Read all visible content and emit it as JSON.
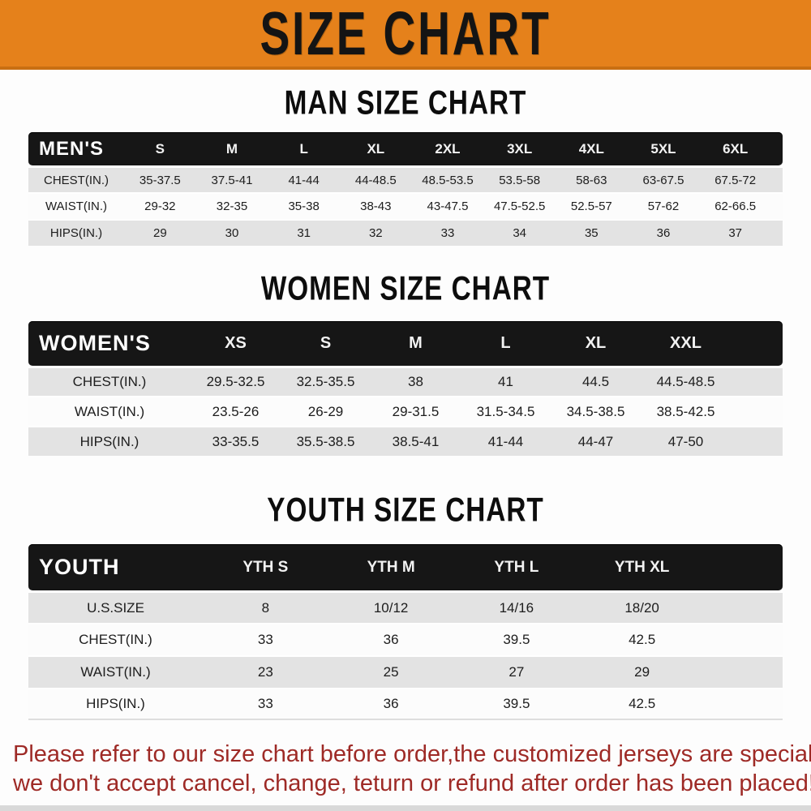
{
  "banner": {
    "title": "SIZE CHART",
    "bg_color": "#e5811b",
    "text_color": "#141414"
  },
  "chart_data": [
    {
      "type": "table",
      "title": "MAN SIZE CHART",
      "header_label": "MEN'S",
      "columns": [
        "S",
        "M",
        "L",
        "XL",
        "2XL",
        "3XL",
        "4XL",
        "5XL",
        "6XL"
      ],
      "rows": [
        {
          "label": "CHEST(IN.)",
          "values": [
            "35-37.5",
            "37.5-41",
            "41-44",
            "44-48.5",
            "48.5-53.5",
            "53.5-58",
            "58-63",
            "63-67.5",
            "67.5-72"
          ]
        },
        {
          "label": "WAIST(IN.)",
          "values": [
            "29-32",
            "32-35",
            "35-38",
            "38-43",
            "43-47.5",
            "47.5-52.5",
            "52.5-57",
            "57-62",
            "62-66.5"
          ]
        },
        {
          "label": "HIPS(IN.)",
          "values": [
            "29",
            "30",
            "31",
            "32",
            "33",
            "34",
            "35",
            "36",
            "37"
          ]
        }
      ]
    },
    {
      "type": "table",
      "title": "WOMEN SIZE CHART",
      "header_label": "WOMEN'S",
      "columns": [
        "XS",
        "S",
        "M",
        "L",
        "XL",
        "XXL"
      ],
      "rows": [
        {
          "label": "CHEST(IN.)",
          "values": [
            "29.5-32.5",
            "32.5-35.5",
            "38",
            "41",
            "44.5",
            "44.5-48.5"
          ]
        },
        {
          "label": "WAIST(IN.)",
          "values": [
            "23.5-26",
            "26-29",
            "29-31.5",
            "31.5-34.5",
            "34.5-38.5",
            "38.5-42.5"
          ]
        },
        {
          "label": "HIPS(IN.)",
          "values": [
            "33-35.5",
            "35.5-38.5",
            "38.5-41",
            "41-44",
            "44-47",
            "47-50"
          ]
        }
      ]
    },
    {
      "type": "table",
      "title": "YOUTH SIZE CHART",
      "header_label": "YOUTH",
      "columns": [
        "YTH S",
        "YTH M",
        "YTH L",
        "YTH XL"
      ],
      "rows": [
        {
          "label": "U.S.SIZE",
          "values": [
            "8",
            "10/12",
            "14/16",
            "18/20"
          ]
        },
        {
          "label": "CHEST(IN.)",
          "values": [
            "33",
            "36",
            "39.5",
            "42.5"
          ]
        },
        {
          "label": "WAIST(IN.)",
          "values": [
            "23",
            "25",
            "27",
            "29"
          ]
        },
        {
          "label": "HIPS(IN.)",
          "values": [
            "33",
            "36",
            "39.5",
            "42.5"
          ]
        }
      ]
    }
  ],
  "footer": {
    "line1": "Please refer to our size chart before order,the customized jerseys are special products,",
    "line2": "we don't accept cancel, change, teturn or refund after order has been placed!",
    "text_color": "#9e2a26"
  }
}
